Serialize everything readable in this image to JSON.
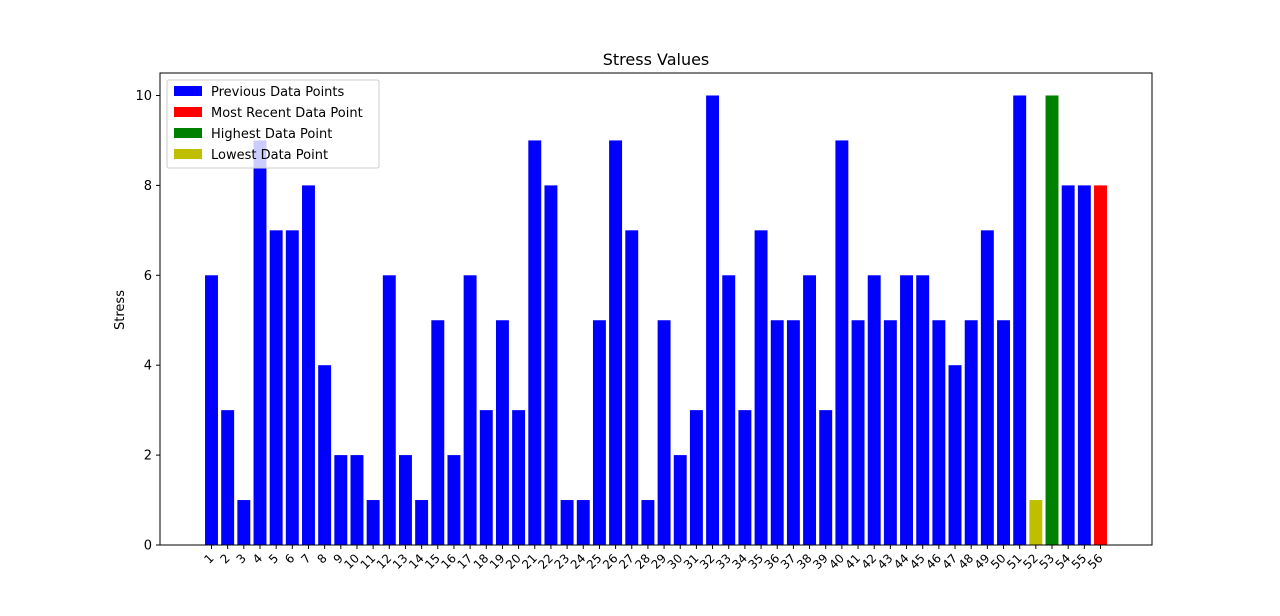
{
  "chart_data": {
    "type": "bar",
    "title": "Stress Values",
    "xlabel": "",
    "ylabel": "Stress",
    "ylim": [
      0,
      10.5
    ],
    "yticks": [
      0,
      2,
      4,
      6,
      8,
      10
    ],
    "grid": false,
    "legend_position": "top-left",
    "categories": [
      "1",
      "2",
      "3",
      "4",
      "5",
      "6",
      "7",
      "8",
      "9",
      "10",
      "11",
      "12",
      "13",
      "14",
      "15",
      "16",
      "17",
      "18",
      "19",
      "20",
      "21",
      "22",
      "23",
      "24",
      "25",
      "26",
      "27",
      "28",
      "29",
      "30",
      "31",
      "32",
      "33",
      "34",
      "35",
      "36",
      "37",
      "38",
      "39",
      "40",
      "41",
      "42",
      "43",
      "44",
      "45",
      "46",
      "47",
      "48",
      "49",
      "50",
      "51",
      "52",
      "53",
      "54",
      "55",
      "56"
    ],
    "values": [
      6,
      3,
      1,
      9,
      7,
      7,
      8,
      4,
      2,
      2,
      1,
      6,
      2,
      1,
      5,
      2,
      6,
      3,
      5,
      3,
      9,
      8,
      1,
      1,
      5,
      9,
      7,
      1,
      5,
      2,
      3,
      10,
      6,
      3,
      7,
      5,
      5,
      6,
      3,
      9,
      5,
      6,
      5,
      6,
      6,
      5,
      4,
      5,
      7,
      5,
      10,
      1,
      10,
      8,
      8,
      8
    ],
    "bar_categories": [
      "previous",
      "previous",
      "previous",
      "previous",
      "previous",
      "previous",
      "previous",
      "previous",
      "previous",
      "previous",
      "previous",
      "previous",
      "previous",
      "previous",
      "previous",
      "previous",
      "previous",
      "previous",
      "previous",
      "previous",
      "previous",
      "previous",
      "previous",
      "previous",
      "previous",
      "previous",
      "previous",
      "previous",
      "previous",
      "previous",
      "previous",
      "previous",
      "previous",
      "previous",
      "previous",
      "previous",
      "previous",
      "previous",
      "previous",
      "previous",
      "previous",
      "previous",
      "previous",
      "previous",
      "previous",
      "previous",
      "previous",
      "previous",
      "previous",
      "previous",
      "previous",
      "lowest",
      "highest",
      "previous",
      "previous",
      "recent"
    ],
    "legend": [
      {
        "key": "previous",
        "label": "Previous Data Points",
        "color": "#0000ff"
      },
      {
        "key": "recent",
        "label": "Most Recent Data Point",
        "color": "#ff0000"
      },
      {
        "key": "highest",
        "label": "Highest Data Point",
        "color": "#008000"
      },
      {
        "key": "lowest",
        "label": "Lowest Data Point",
        "color": "#bfbf00"
      }
    ]
  }
}
